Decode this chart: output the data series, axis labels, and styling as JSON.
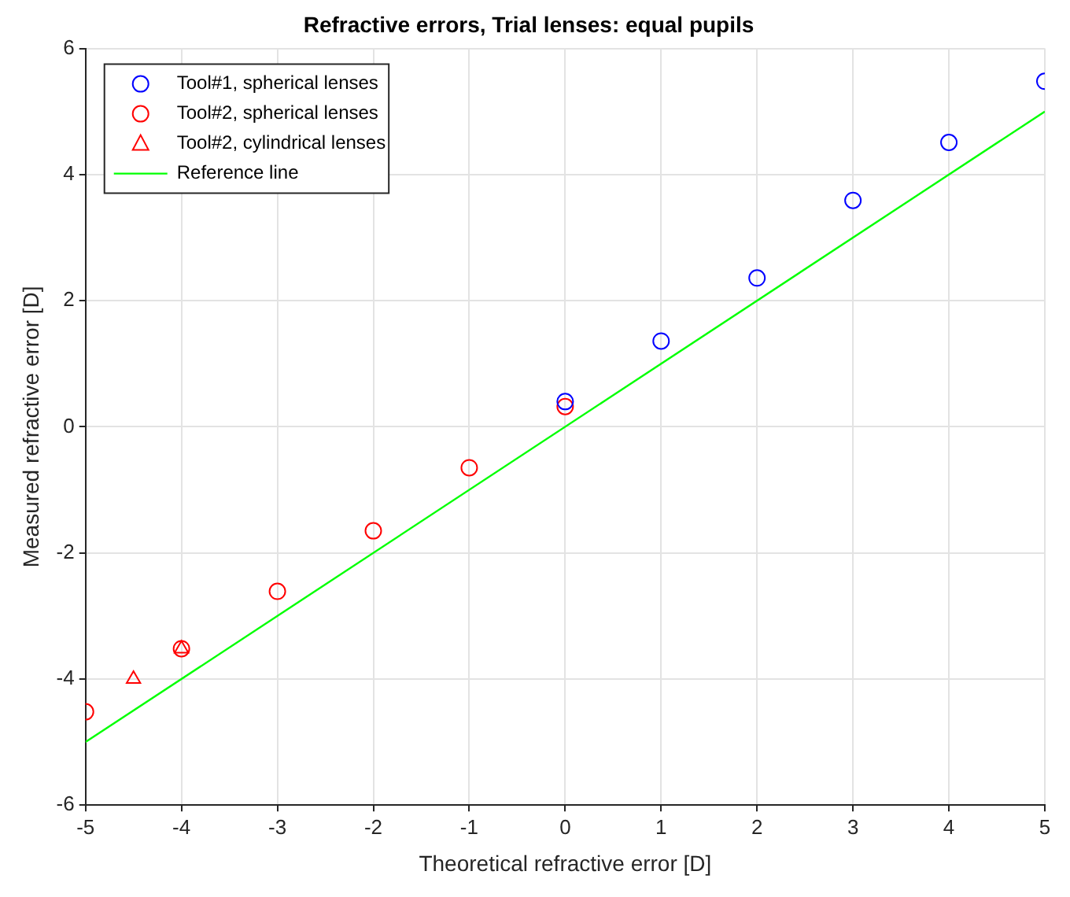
{
  "chart_data": {
    "type": "scatter",
    "title": "Refractive errors, Trial lenses: equal pupils",
    "xlabel": "Theoretical refractive error [D]",
    "ylabel": "Measured refractive error [D]",
    "xlim": [
      -5,
      5
    ],
    "xticks": [
      -5,
      -4,
      -3,
      -2,
      -1,
      0,
      1,
      2,
      3,
      4,
      5
    ],
    "ylim": [
      -6,
      6
    ],
    "yticks": [
      -6,
      -4,
      -2,
      0,
      2,
      4,
      6
    ],
    "grid": true,
    "legend": "top left",
    "series": [
      {
        "name": "Tool#1, spherical lenses",
        "type": "scatter",
        "marker": "circle",
        "color": "#0000ff",
        "x": [
          0,
          1,
          2,
          3,
          4,
          5
        ],
        "values": [
          0.4,
          1.36,
          2.36,
          3.59,
          4.51,
          5.48
        ]
      },
      {
        "name": "Tool#2, spherical lenses",
        "type": "scatter",
        "marker": "circle",
        "color": "#ff0000",
        "x": [
          0,
          -1,
          -2,
          -3,
          -4,
          -5
        ],
        "values": [
          0.32,
          -0.65,
          -1.65,
          -2.61,
          -3.52,
          -4.52
        ]
      },
      {
        "name": "Tool#2, cylindrical lenses",
        "type": "scatter",
        "marker": "triangle",
        "color": "#ff0000",
        "x": [
          -4.5,
          -4
        ],
        "values": [
          -4.0,
          -3.52
        ]
      },
      {
        "name": "Reference line",
        "type": "line",
        "marker": "none",
        "line_style": "solid",
        "color": "#00ff00",
        "x": [
          -5,
          5
        ],
        "values": [
          -5,
          5
        ]
      }
    ]
  }
}
